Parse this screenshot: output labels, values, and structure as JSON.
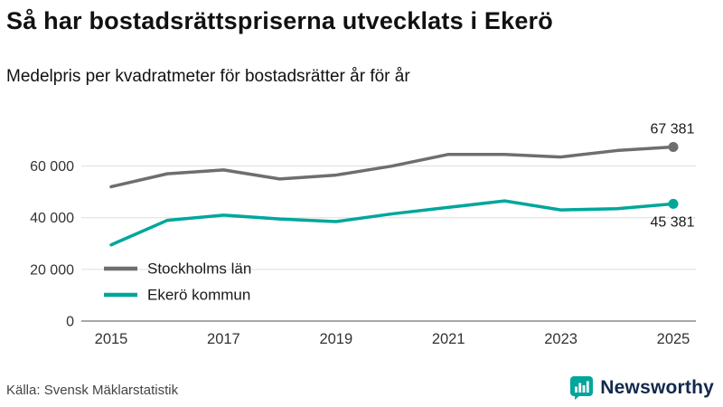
{
  "header": {
    "title": "Så har bostadsrättspriserna utvecklats i Ekerö",
    "subtitle": "Medelpris per kvadratmeter för bostadsrätter år för år"
  },
  "footer": {
    "source": "Källa: Svensk Mäklarstatistik",
    "brand": "Newsworthy"
  },
  "colors": {
    "brand_teal": "#00a69c",
    "brand_navy": "#13294b",
    "gridline": "#dedede",
    "axis_line": "#8a8a8a",
    "text": "#333333"
  },
  "chart_data": {
    "type": "line",
    "x": [
      2015,
      2016,
      2017,
      2018,
      2019,
      2020,
      2021,
      2022,
      2023,
      2024,
      2025
    ],
    "series": [
      {
        "name": "Stockholms län",
        "color": "#6e6e6e",
        "values": [
          52000,
          57000,
          58500,
          55000,
          56500,
          60000,
          64500,
          64500,
          63500,
          66000,
          67381
        ],
        "end_label": "67 381"
      },
      {
        "name": "Ekerö kommun",
        "color": "#00a69c",
        "values": [
          29500,
          39000,
          41000,
          39500,
          38500,
          41500,
          44000,
          46500,
          43000,
          43500,
          45381
        ],
        "end_label": "45 381"
      }
    ],
    "ylim": [
      0,
      70000
    ],
    "y_ticks": [
      {
        "value": 0,
        "label": "0"
      },
      {
        "value": 20000,
        "label": "20 000"
      },
      {
        "value": 40000,
        "label": "40 000"
      },
      {
        "value": 60000,
        "label": "60 000"
      }
    ],
    "x_ticks": [
      2015,
      2017,
      2019,
      2021,
      2023,
      2025
    ],
    "grid": "horizontal",
    "legend_position": "inside-bottom-left"
  }
}
